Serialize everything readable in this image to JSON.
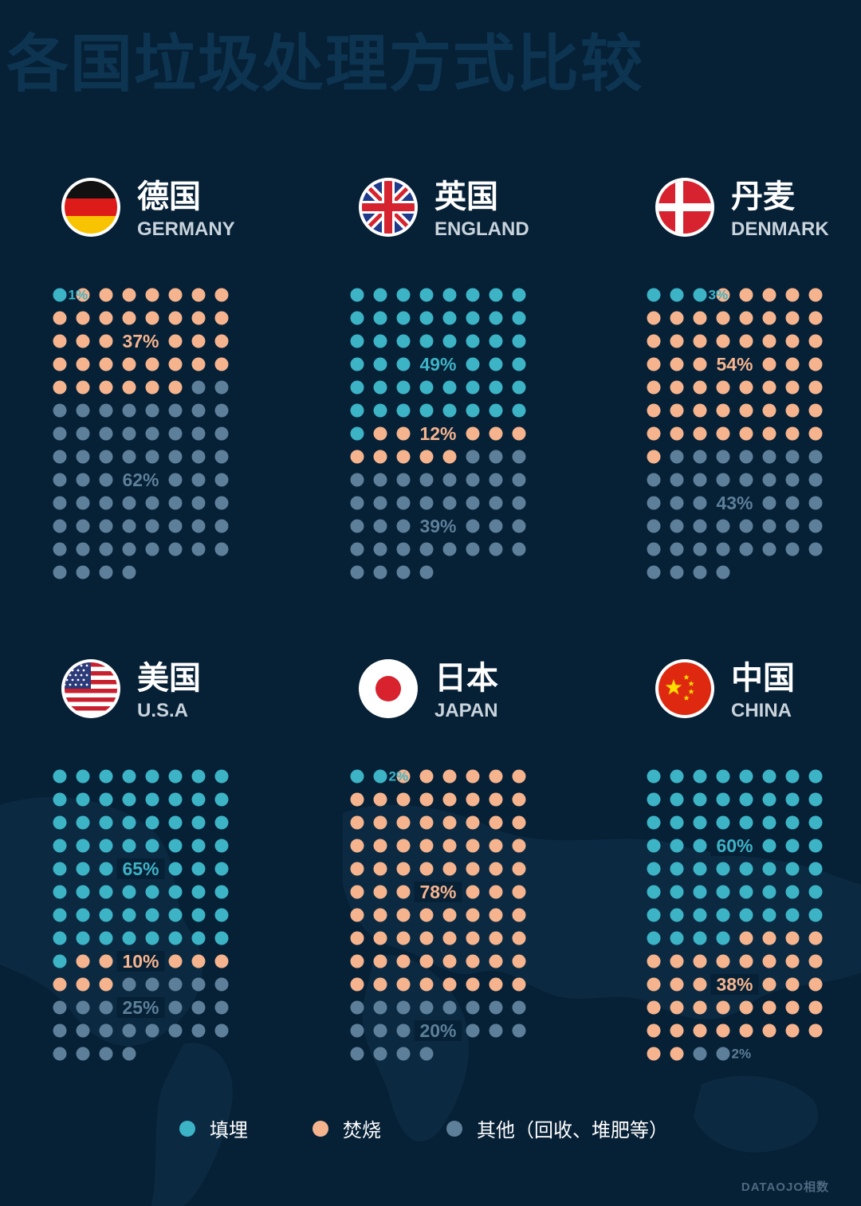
{
  "title": "各国垃圾处理方式比较",
  "colors": {
    "landfill": "#3db3c6",
    "incineration": "#f5b48e",
    "other": "#5d7f99",
    "background": "#062036"
  },
  "legend": [
    {
      "label": "填埋",
      "color": "#3db3c6"
    },
    {
      "label": "焚烧",
      "color": "#f5b48e"
    },
    {
      "label": "其他（回收、堆肥等）",
      "color": "#5d7f99"
    }
  ],
  "brand": "DATAOJO相数",
  "chart_data": [
    {
      "type": "waffle",
      "name_cn": "德国",
      "name_en": "GERMANY",
      "flag": "germany-flag",
      "values": {
        "landfill": 1,
        "incineration": 37,
        "other": 62
      },
      "labels": {
        "landfill": "1%",
        "incineration": "37%",
        "other": "62%"
      }
    },
    {
      "type": "waffle",
      "name_cn": "英国",
      "name_en": "ENGLAND",
      "flag": "uk-flag",
      "values": {
        "landfill": 49,
        "incineration": 12,
        "other": 39
      },
      "labels": {
        "landfill": "49%",
        "incineration": "12%",
        "other": "39%"
      }
    },
    {
      "type": "waffle",
      "name_cn": "丹麦",
      "name_en": "DENMARK",
      "flag": "denmark-flag",
      "values": {
        "landfill": 3,
        "incineration": 54,
        "other": 43
      },
      "labels": {
        "landfill": "3%",
        "incineration": "54%",
        "other": "43%"
      }
    },
    {
      "type": "waffle",
      "name_cn": "美国",
      "name_en": "U.S.A",
      "flag": "usa-flag",
      "values": {
        "landfill": 65,
        "incineration": 10,
        "other": 25
      },
      "labels": {
        "landfill": "65%",
        "incineration": "10%",
        "other": "25%"
      }
    },
    {
      "type": "waffle",
      "name_cn": "日本",
      "name_en": "JAPAN",
      "flag": "japan-flag",
      "values": {
        "landfill": 2,
        "incineration": 78,
        "other": 20
      },
      "labels": {
        "landfill": "2%",
        "incineration": "78%",
        "other": "20%"
      }
    },
    {
      "type": "waffle",
      "name_cn": "中国",
      "name_en": "CHINA",
      "flag": "china-flag",
      "values": {
        "landfill": 60,
        "incineration": 38,
        "other": 2
      },
      "labels": {
        "landfill": "60%",
        "incineration": "38%",
        "other": "2%"
      }
    }
  ]
}
